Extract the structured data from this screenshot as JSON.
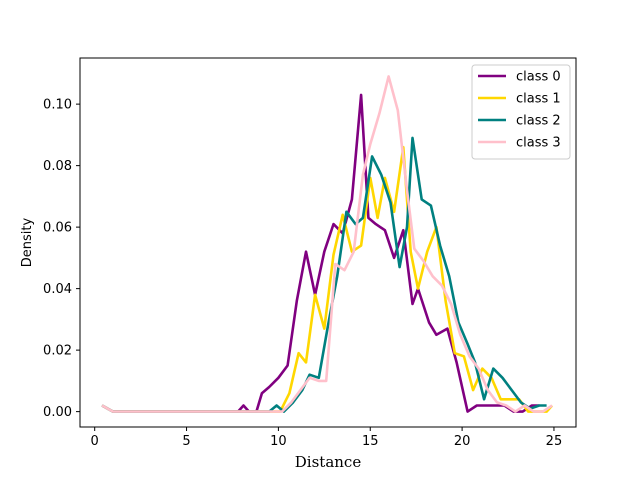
{
  "chart_data": {
    "type": "line",
    "title": "",
    "xlabel": "Distance",
    "ylabel": "Density",
    "xlim": [
      -0.8,
      26.2
    ],
    "ylim": [
      -0.005,
      0.115
    ],
    "xticks": [
      0,
      5,
      10,
      15,
      20,
      25
    ],
    "yticks": [
      0.0,
      0.02,
      0.04,
      0.06,
      0.08,
      0.1
    ],
    "ytick_labels": [
      "0.00",
      "0.02",
      "0.04",
      "0.06",
      "0.08",
      "0.10"
    ],
    "grid": false,
    "legend_position": "top-right",
    "series": [
      {
        "name": "class 0",
        "color": "#800080",
        "points": [
          [
            0.4,
            0.002
          ],
          [
            1.0,
            0.0
          ],
          [
            2,
            0.0
          ],
          [
            3,
            0.0
          ],
          [
            4,
            0.0
          ],
          [
            5,
            0.0
          ],
          [
            6,
            0.0
          ],
          [
            7,
            0.0
          ],
          [
            7.8,
            0.0
          ],
          [
            8.1,
            0.002
          ],
          [
            8.4,
            0.0
          ],
          [
            8.8,
            0.0
          ],
          [
            9.1,
            0.006
          ],
          [
            9.5,
            0.008
          ],
          [
            10.0,
            0.011
          ],
          [
            10.5,
            0.015
          ],
          [
            11.0,
            0.036
          ],
          [
            11.5,
            0.052
          ],
          [
            12.0,
            0.038
          ],
          [
            12.5,
            0.052
          ],
          [
            13.0,
            0.061
          ],
          [
            13.5,
            0.058
          ],
          [
            14.0,
            0.069
          ],
          [
            14.5,
            0.103
          ],
          [
            14.9,
            0.063
          ],
          [
            15.3,
            0.061
          ],
          [
            15.8,
            0.059
          ],
          [
            16.3,
            0.05
          ],
          [
            16.8,
            0.059
          ],
          [
            17.3,
            0.035
          ],
          [
            17.6,
            0.04
          ],
          [
            18.2,
            0.029
          ],
          [
            18.6,
            0.025
          ],
          [
            19.2,
            0.027
          ],
          [
            19.7,
            0.016
          ],
          [
            20.3,
            0.0
          ],
          [
            20.8,
            0.002
          ],
          [
            21.3,
            0.002
          ],
          [
            21.8,
            0.002
          ],
          [
            22.3,
            0.002
          ],
          [
            22.8,
            0.0
          ],
          [
            23.3,
            0.0
          ],
          [
            23.8,
            0.002
          ],
          [
            24.2,
            0.002
          ]
        ]
      },
      {
        "name": "class 1",
        "color": "#FFD700",
        "points": [
          [
            0.4,
            0.002
          ],
          [
            1.0,
            0.0
          ],
          [
            2,
            0.0
          ],
          [
            3,
            0.0
          ],
          [
            4,
            0.0
          ],
          [
            5,
            0.0
          ],
          [
            6,
            0.0
          ],
          [
            7,
            0.0
          ],
          [
            8,
            0.0
          ],
          [
            9,
            0.0
          ],
          [
            9.6,
            0.0
          ],
          [
            10.1,
            0.0
          ],
          [
            10.6,
            0.006
          ],
          [
            11.1,
            0.019
          ],
          [
            11.5,
            0.016
          ],
          [
            12.0,
            0.038
          ],
          [
            12.5,
            0.027
          ],
          [
            13.0,
            0.051
          ],
          [
            13.5,
            0.064
          ],
          [
            14.0,
            0.052
          ],
          [
            14.5,
            0.054
          ],
          [
            15.0,
            0.076
          ],
          [
            15.4,
            0.063
          ],
          [
            15.8,
            0.076
          ],
          [
            16.3,
            0.065
          ],
          [
            16.8,
            0.086
          ],
          [
            17.2,
            0.052
          ],
          [
            17.6,
            0.04
          ],
          [
            18.1,
            0.052
          ],
          [
            18.6,
            0.06
          ],
          [
            19.1,
            0.036
          ],
          [
            19.6,
            0.019
          ],
          [
            20.1,
            0.018
          ],
          [
            20.6,
            0.007
          ],
          [
            21.1,
            0.014
          ],
          [
            21.6,
            0.011
          ],
          [
            22.1,
            0.004
          ],
          [
            22.6,
            0.004
          ],
          [
            23.1,
            0.004
          ],
          [
            23.6,
            0.0
          ],
          [
            24.1,
            0.0
          ],
          [
            24.6,
            0.0
          ],
          [
            24.9,
            0.002
          ]
        ]
      },
      {
        "name": "class 2",
        "color": "#008080",
        "points": [
          [
            0.4,
            0.002
          ],
          [
            1.0,
            0.0
          ],
          [
            2,
            0.0
          ],
          [
            3,
            0.0
          ],
          [
            4,
            0.0
          ],
          [
            5,
            0.0
          ],
          [
            6,
            0.0
          ],
          [
            7,
            0.0
          ],
          [
            8,
            0.0
          ],
          [
            9,
            0.0
          ],
          [
            9.5,
            0.0
          ],
          [
            9.9,
            0.002
          ],
          [
            10.3,
            0.0
          ],
          [
            10.8,
            0.003
          ],
          [
            11.3,
            0.007
          ],
          [
            11.7,
            0.012
          ],
          [
            12.2,
            0.011
          ],
          [
            12.7,
            0.028
          ],
          [
            13.2,
            0.044
          ],
          [
            13.7,
            0.065
          ],
          [
            14.2,
            0.061
          ],
          [
            14.6,
            0.063
          ],
          [
            15.1,
            0.083
          ],
          [
            15.6,
            0.077
          ],
          [
            16.1,
            0.068
          ],
          [
            16.6,
            0.047
          ],
          [
            17.0,
            0.06
          ],
          [
            17.3,
            0.089
          ],
          [
            17.8,
            0.069
          ],
          [
            18.3,
            0.067
          ],
          [
            18.8,
            0.054
          ],
          [
            19.3,
            0.044
          ],
          [
            19.8,
            0.029
          ],
          [
            20.3,
            0.022
          ],
          [
            20.7,
            0.016
          ],
          [
            21.2,
            0.004
          ],
          [
            21.7,
            0.014
          ],
          [
            22.2,
            0.011
          ],
          [
            22.7,
            0.007
          ],
          [
            23.2,
            0.003
          ],
          [
            23.7,
            0.001
          ],
          [
            24.2,
            0.002
          ],
          [
            24.6,
            0.002
          ]
        ]
      },
      {
        "name": "class 3",
        "color": "#FFC0CB",
        "points": [
          [
            0.4,
            0.002
          ],
          [
            1.0,
            0.0
          ],
          [
            2,
            0.0
          ],
          [
            3,
            0.0
          ],
          [
            4,
            0.0
          ],
          [
            5,
            0.0
          ],
          [
            6,
            0.0
          ],
          [
            7,
            0.0
          ],
          [
            8,
            0.0
          ],
          [
            9,
            0.0
          ],
          [
            9.7,
            0.0
          ],
          [
            10.2,
            0.0
          ],
          [
            10.7,
            0.003
          ],
          [
            11.2,
            0.007
          ],
          [
            11.7,
            0.011
          ],
          [
            12.2,
            0.01
          ],
          [
            12.6,
            0.01
          ],
          [
            13.1,
            0.048
          ],
          [
            13.6,
            0.046
          ],
          [
            14.1,
            0.052
          ],
          [
            14.6,
            0.077
          ],
          [
            15.0,
            0.087
          ],
          [
            15.5,
            0.097
          ],
          [
            16.0,
            0.109
          ],
          [
            16.5,
            0.098
          ],
          [
            17.0,
            0.072
          ],
          [
            17.4,
            0.053
          ],
          [
            17.9,
            0.049
          ],
          [
            18.4,
            0.044
          ],
          [
            18.9,
            0.041
          ],
          [
            19.4,
            0.035
          ],
          [
            19.9,
            0.025
          ],
          [
            20.4,
            0.018
          ],
          [
            20.9,
            0.014
          ],
          [
            21.4,
            0.007
          ],
          [
            21.9,
            0.003
          ],
          [
            22.4,
            0.002
          ],
          [
            22.9,
            0.0
          ],
          [
            23.4,
            0.002
          ],
          [
            23.9,
            0.0
          ],
          [
            24.4,
            0.0
          ],
          [
            24.9,
            0.002
          ]
        ]
      }
    ]
  }
}
